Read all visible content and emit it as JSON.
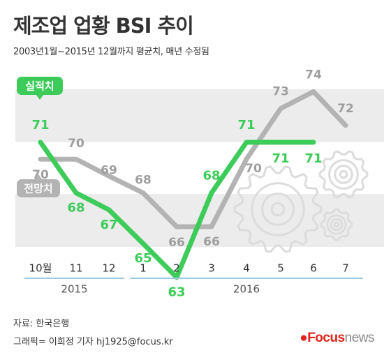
{
  "title": "제조업 업황 BSI 추이",
  "subtitle": "2003년1월~2015년 12월까지 평균치, 매년 수정됨",
  "source": "자료: 한국은행",
  "credit": "그래픽= 이희정 기자 hj1925@focus.kr",
  "logo": {
    "mark": "●",
    "focus": "Focus",
    "news": "news"
  },
  "colors": {
    "actual": "#3dcc5a",
    "forecast": "#b3b3b3",
    "band": "#ececec",
    "text_dark": "#333333"
  },
  "chart_data": {
    "type": "line",
    "title": "제조업 업황 BSI 추이",
    "subtitle": "2003년1월~2015년 12월까지 평균치, 매년 수정됨",
    "categories": [
      "10월",
      "11",
      "12",
      "1",
      "2",
      "3",
      "4",
      "5",
      "6",
      "7"
    ],
    "year_groups": [
      {
        "label": "2015",
        "from": 0,
        "to": 2
      },
      {
        "label": "2016",
        "from": 3,
        "to": 9
      }
    ],
    "series": [
      {
        "name": "실적치",
        "values": [
          71,
          68,
          67,
          65,
          63,
          68,
          71,
          71,
          71,
          null
        ]
      },
      {
        "name": "전망치",
        "values": [
          70,
          70,
          69,
          68,
          66,
          66,
          70,
          73,
          74,
          72
        ]
      }
    ],
    "ylim": [
      60,
      76
    ],
    "grid": false
  }
}
